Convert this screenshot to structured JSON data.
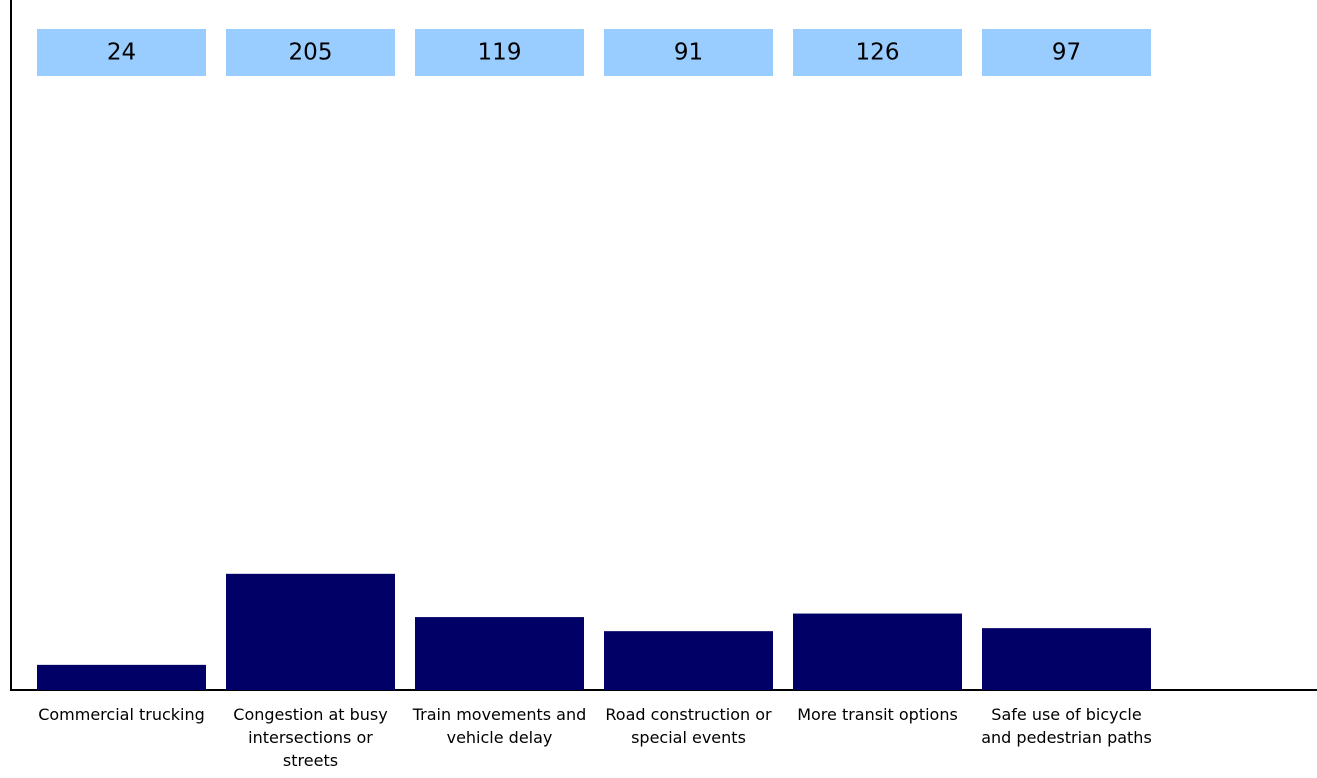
{
  "chart_data": {
    "type": "bar",
    "categories": [
      "Commercial trucking",
      "Congestion at busy intersections or streets",
      "Train movements and vehicle delay",
      "Road construction or special events",
      "More transit options",
      "Safe use of bicycle and pedestrian paths"
    ],
    "values": [
      24,
      205,
      119,
      91,
      126,
      97
    ],
    "color": "#000066",
    "label_box_color": "#99ccff",
    "ylim": [
      -26,
      1346
    ]
  }
}
